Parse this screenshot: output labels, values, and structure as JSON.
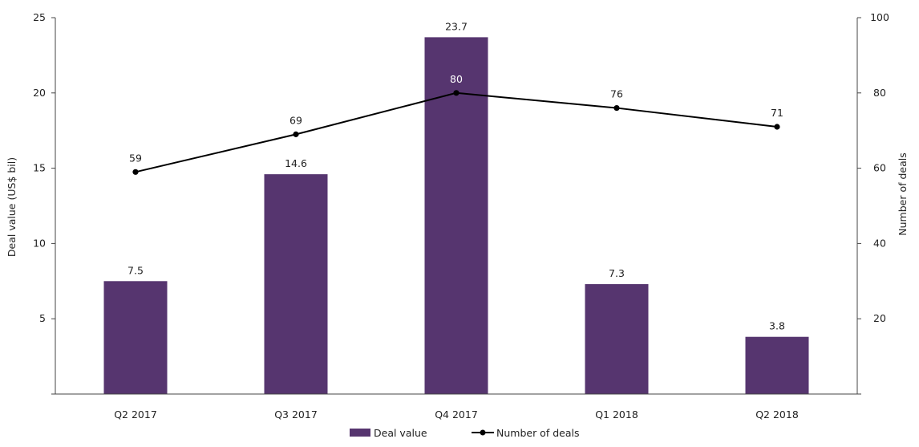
{
  "chart_data": {
    "type": "bar",
    "categories": [
      "Q2 2017",
      "Q3 2017",
      "Q4 2017",
      "Q1 2018",
      "Q2 2018"
    ],
    "ylabel": "Deal value (US$ bil)",
    "y2label": "Number of deals",
    "ylim": [
      0,
      25
    ],
    "y2lim": [
      0,
      100
    ],
    "yticks": [
      5,
      10,
      15,
      20,
      25
    ],
    "y2ticks": [
      20,
      40,
      60,
      80,
      100
    ],
    "grid": false,
    "legend_position": "bottom",
    "series": [
      {
        "name": "Deal value",
        "type": "bar",
        "axis": "left",
        "color": "#56356f",
        "values": [
          7.5,
          14.6,
          23.7,
          7.3,
          3.8
        ],
        "labels": [
          "7.5",
          "14.6",
          "23.7",
          "7.3",
          "3.8"
        ]
      },
      {
        "name": "Number of deals",
        "type": "line",
        "axis": "right",
        "color": "#000000",
        "values": [
          59,
          69,
          80,
          76,
          71
        ],
        "labels": [
          "59",
          "69",
          "80",
          "76",
          "71"
        ]
      }
    ]
  }
}
